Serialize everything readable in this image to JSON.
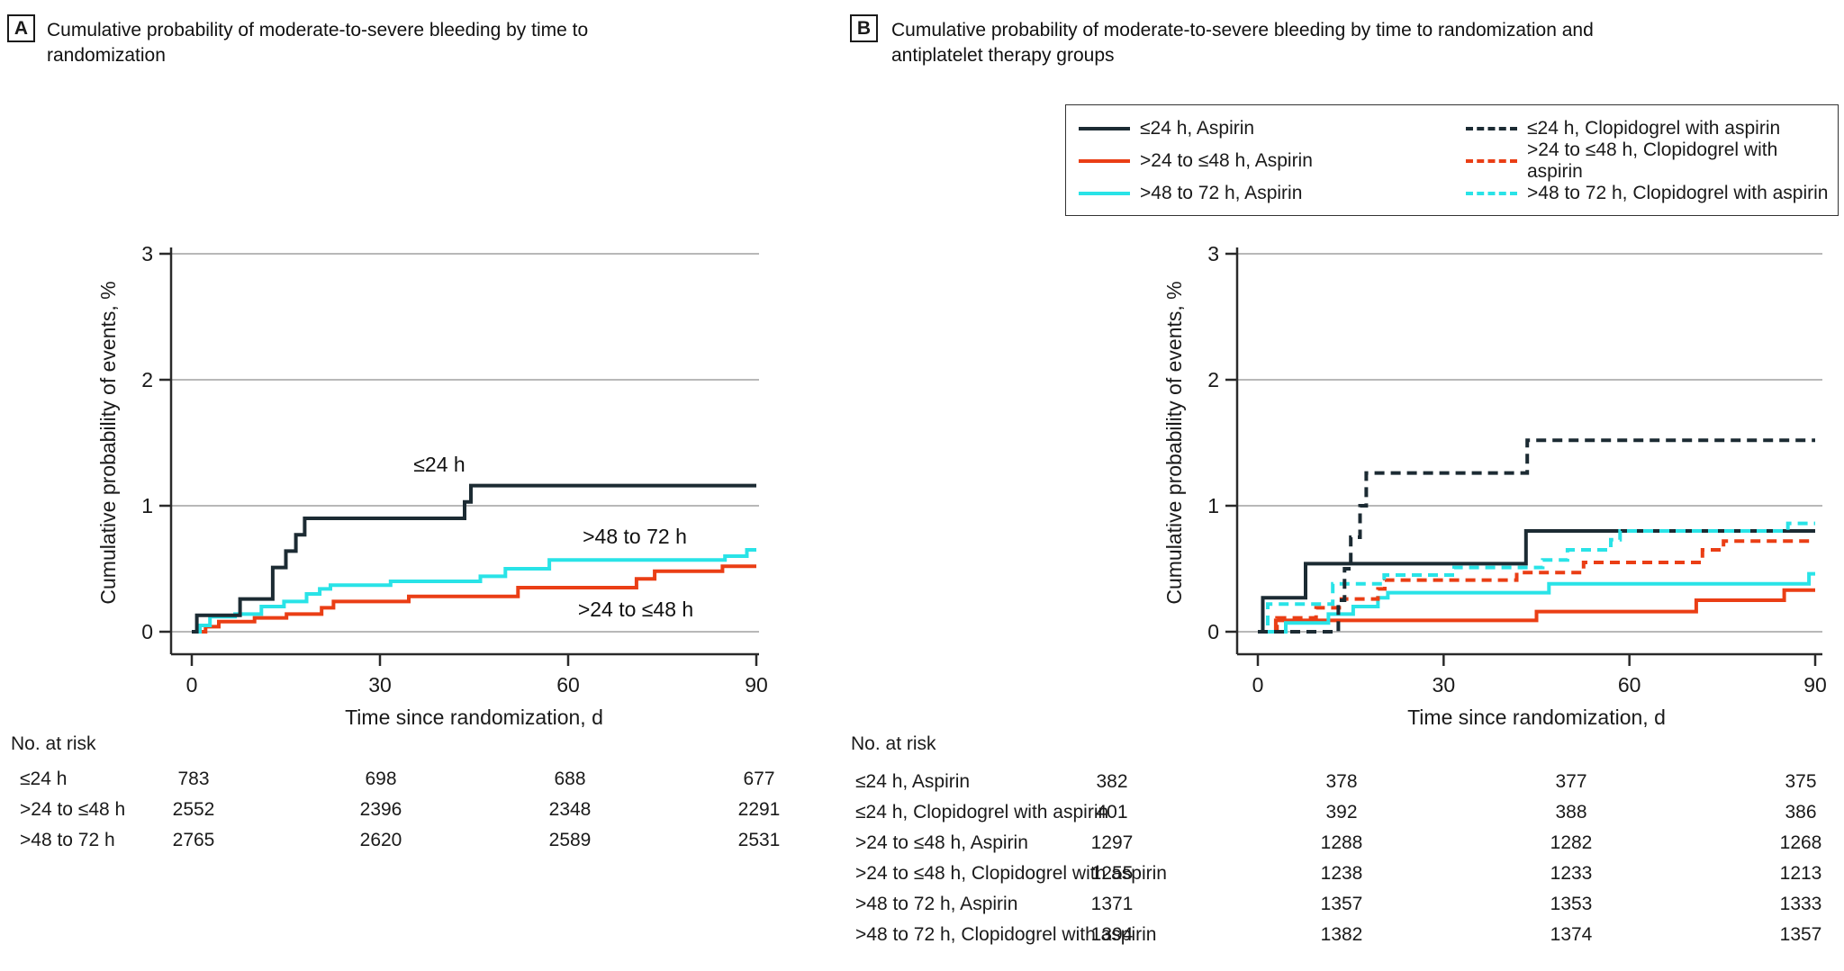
{
  "colors": {
    "black": "#1c2b33",
    "red": "#ea3e15",
    "cyan": "#29e3e7",
    "grid": "#b8b8b8",
    "axis": "#2a2a2a"
  },
  "panel_a": {
    "tag": "A",
    "title": "Cumulative probability of moderate-to-severe bleeding by time to randomization",
    "annotations": [
      {
        "text": "≤24 h"
      },
      {
        "text": ">48 to 72 h"
      },
      {
        "text": ">24 to ≤48 h"
      }
    ],
    "risk_table": {
      "title": "No. at risk",
      "rows": [
        {
          "label": "≤24 h",
          "values": [
            "783",
            "698",
            "688",
            "677"
          ]
        },
        {
          "label": ">24 to ≤48 h",
          "values": [
            "2552",
            "2396",
            "2348",
            "2291"
          ]
        },
        {
          "label": ">48 to 72 h",
          "values": [
            "2765",
            "2620",
            "2589",
            "2531"
          ]
        }
      ]
    }
  },
  "panel_b": {
    "tag": "B",
    "title": "Cumulative probability of moderate-to-severe bleeding by time to randomization and antiplatelet therapy groups",
    "legend": {
      "entries": [
        {
          "label": "≤24 h, Aspirin",
          "color": "black",
          "dash": false
        },
        {
          "label": ">24 to ≤48 h, Aspirin",
          "color": "red",
          "dash": false
        },
        {
          "label": ">48 to 72 h, Aspirin",
          "color": "cyan",
          "dash": false
        },
        {
          "label": "≤24 h, Clopidogrel with aspirin",
          "color": "black",
          "dash": true
        },
        {
          "label": ">24 to ≤48 h, Clopidogrel with aspirin",
          "color": "red",
          "dash": true
        },
        {
          "label": ">48 to 72 h, Clopidogrel with aspirin",
          "color": "cyan",
          "dash": true
        }
      ]
    },
    "risk_table": {
      "title": "No. at risk",
      "rows": [
        {
          "label": "≤24 h, Aspirin",
          "values": [
            "382",
            "378",
            "377",
            "375"
          ]
        },
        {
          "label": "≤24 h, Clopidogrel with aspirin",
          "values": [
            "401",
            "392",
            "388",
            "386"
          ]
        },
        {
          "label": ">24 to ≤48 h, Aspirin",
          "values": [
            "1297",
            "1288",
            "1282",
            "1268"
          ]
        },
        {
          "label": ">24 to ≤48 h, Clopidogrel with aspirin",
          "values": [
            "1255",
            "1238",
            "1233",
            "1213"
          ]
        },
        {
          "label": ">48 to 72 h, Aspirin",
          "values": [
            "1371",
            "1357",
            "1353",
            "1333"
          ]
        },
        {
          "label": ">48 to 72 h, Clopidogrel with aspirin",
          "values": [
            "1394",
            "1382",
            "1374",
            "1357"
          ]
        }
      ]
    }
  },
  "chart_data": [
    {
      "type": "line",
      "panel": "A",
      "title": "Cumulative probability of moderate-to-severe bleeding by time to randomization",
      "xlabel": "Time since randomization, d",
      "ylabel": "Cumulative probability of events, %",
      "xlim": [
        0,
        90
      ],
      "ylim": [
        0,
        3
      ],
      "x_ticks": [
        0,
        30,
        60,
        90
      ],
      "y_ticks": [
        0,
        1,
        2,
        3
      ],
      "grid": "horizontal",
      "legend_position": "none",
      "series": [
        {
          "name": ">24 to ≤48 h",
          "color": "red",
          "dash": false,
          "points": [
            [
              0,
              0
            ],
            [
              2.2,
              0
            ],
            [
              2.2,
              0.04
            ],
            [
              4.3,
              0.04
            ],
            [
              4.3,
              0.08
            ],
            [
              10,
              0.08
            ],
            [
              10,
              0.11
            ],
            [
              15.1,
              0.11
            ],
            [
              15.1,
              0.14
            ],
            [
              20.7,
              0.14
            ],
            [
              20.7,
              0.19
            ],
            [
              22.6,
              0.19
            ],
            [
              22.6,
              0.24
            ],
            [
              34.6,
              0.24
            ],
            [
              34.6,
              0.28
            ],
            [
              52,
              0.28
            ],
            [
              52,
              0.35
            ],
            [
              70.9,
              0.35
            ],
            [
              70.9,
              0.42
            ],
            [
              73.8,
              0.42
            ],
            [
              73.8,
              0.48
            ],
            [
              84.6,
              0.48
            ],
            [
              84.6,
              0.52
            ],
            [
              90,
              0.52
            ]
          ]
        },
        {
          "name": ">48 to 72 h",
          "color": "cyan",
          "dash": false,
          "points": [
            [
              0,
              0
            ],
            [
              1.3,
              0
            ],
            [
              1.3,
              0.05
            ],
            [
              2.9,
              0.05
            ],
            [
              2.9,
              0.12
            ],
            [
              6.9,
              0.12
            ],
            [
              6.9,
              0.14
            ],
            [
              11.1,
              0.14
            ],
            [
              11.1,
              0.2
            ],
            [
              14.7,
              0.2
            ],
            [
              14.7,
              0.24
            ],
            [
              18.3,
              0.24
            ],
            [
              18.3,
              0.3
            ],
            [
              20.4,
              0.3
            ],
            [
              20.4,
              0.34
            ],
            [
              22.1,
              0.34
            ],
            [
              22.1,
              0.37
            ],
            [
              31.7,
              0.37
            ],
            [
              31.7,
              0.4
            ],
            [
              46,
              0.4
            ],
            [
              46,
              0.44
            ],
            [
              50,
              0.44
            ],
            [
              50,
              0.5
            ],
            [
              57,
              0.5
            ],
            [
              57,
              0.57
            ],
            [
              85,
              0.57
            ],
            [
              85,
              0.6
            ],
            [
              88.5,
              0.6
            ],
            [
              88.5,
              0.65
            ],
            [
              90,
              0.65
            ]
          ]
        },
        {
          "name": "≤24 h",
          "color": "black",
          "dash": false,
          "points": [
            [
              0,
              0
            ],
            [
              0.8,
              0
            ],
            [
              0.8,
              0.13
            ],
            [
              7.7,
              0.13
            ],
            [
              7.7,
              0.26
            ],
            [
              12.9,
              0.26
            ],
            [
              12.9,
              0.51
            ],
            [
              15,
              0.51
            ],
            [
              15,
              0.64
            ],
            [
              16.6,
              0.64
            ],
            [
              16.6,
              0.77
            ],
            [
              18,
              0.77
            ],
            [
              18,
              0.9
            ],
            [
              43.5,
              0.9
            ],
            [
              43.5,
              1.03
            ],
            [
              44.5,
              1.03
            ],
            [
              44.5,
              1.16
            ],
            [
              90,
              1.16
            ]
          ]
        }
      ]
    },
    {
      "type": "line",
      "panel": "B",
      "title": "Cumulative probability of moderate-to-severe bleeding by time to randomization and antiplatelet therapy groups",
      "xlabel": "Time since randomization, d",
      "ylabel": "Cumulative probability of events, %",
      "xlim": [
        0,
        90
      ],
      "ylim": [
        0,
        3
      ],
      "x_ticks": [
        0,
        30,
        60,
        90
      ],
      "y_ticks": [
        0,
        1,
        2,
        3
      ],
      "grid": "horizontal",
      "legend_position": "top-right box",
      "series": [
        {
          "name": ">24 to ≤48 h, Aspirin",
          "color": "red",
          "dash": false,
          "points": [
            [
              0,
              0
            ],
            [
              2.9,
              0
            ],
            [
              2.9,
              0.09
            ],
            [
              45,
              0.09
            ],
            [
              45,
              0.16
            ],
            [
              70.8,
              0.16
            ],
            [
              70.8,
              0.25
            ],
            [
              85,
              0.25
            ],
            [
              85,
              0.33
            ],
            [
              90,
              0.33
            ]
          ]
        },
        {
          "name": ">48 to 72 h, Aspirin",
          "color": "cyan",
          "dash": false,
          "points": [
            [
              0,
              0
            ],
            [
              4.5,
              0
            ],
            [
              4.5,
              0.07
            ],
            [
              11.4,
              0.07
            ],
            [
              11.4,
              0.14
            ],
            [
              15.4,
              0.14
            ],
            [
              15.4,
              0.2
            ],
            [
              19.4,
              0.2
            ],
            [
              19.4,
              0.27
            ],
            [
              21,
              0.27
            ],
            [
              21,
              0.31
            ],
            [
              47,
              0.31
            ],
            [
              47,
              0.38
            ],
            [
              89,
              0.38
            ],
            [
              89,
              0.46
            ],
            [
              90,
              0.46
            ]
          ]
        },
        {
          "name": "≤24 h, Aspirin",
          "color": "black",
          "dash": false,
          "points": [
            [
              0,
              0
            ],
            [
              0.8,
              0
            ],
            [
              0.8,
              0.27
            ],
            [
              7.7,
              0.27
            ],
            [
              7.7,
              0.54
            ],
            [
              43.3,
              0.54
            ],
            [
              43.3,
              0.8
            ],
            [
              90,
              0.8
            ]
          ]
        },
        {
          "name": ">24 to ≤48 h, Clopidogrel with aspirin",
          "color": "red",
          "dash": true,
          "points": [
            [
              0,
              0
            ],
            [
              3.1,
              0
            ],
            [
              3.1,
              0.11
            ],
            [
              9.4,
              0.11
            ],
            [
              9.4,
              0.19
            ],
            [
              13.5,
              0.19
            ],
            [
              13.5,
              0.26
            ],
            [
              19.4,
              0.26
            ],
            [
              19.4,
              0.34
            ],
            [
              20.5,
              0.34
            ],
            [
              20.5,
              0.41
            ],
            [
              41.8,
              0.41
            ],
            [
              41.8,
              0.47
            ],
            [
              52.6,
              0.47
            ],
            [
              52.6,
              0.55
            ],
            [
              71.8,
              0.55
            ],
            [
              71.8,
              0.65
            ],
            [
              75.2,
              0.65
            ],
            [
              75.2,
              0.72
            ],
            [
              90,
              0.72
            ]
          ]
        },
        {
          "name": ">48 to 72 h, Clopidogrel with aspirin",
          "color": "cyan",
          "dash": true,
          "points": [
            [
              0,
              0
            ],
            [
              1.6,
              0
            ],
            [
              1.6,
              0.22
            ],
            [
              12.1,
              0.22
            ],
            [
              12.1,
              0.38
            ],
            [
              20.4,
              0.38
            ],
            [
              20.4,
              0.45
            ],
            [
              31.7,
              0.45
            ],
            [
              31.7,
              0.51
            ],
            [
              46,
              0.51
            ],
            [
              46,
              0.57
            ],
            [
              50,
              0.57
            ],
            [
              50,
              0.65
            ],
            [
              57,
              0.65
            ],
            [
              57,
              0.73
            ],
            [
              58.5,
              0.73
            ],
            [
              58.5,
              0.8
            ],
            [
              85.6,
              0.8
            ],
            [
              85.6,
              0.86
            ],
            [
              90,
              0.86
            ]
          ]
        },
        {
          "name": "≤24 h, Clopidogrel with aspirin",
          "color": "black",
          "dash": true,
          "points": [
            [
              0,
              0
            ],
            [
              13,
              0
            ],
            [
              13,
              0.25
            ],
            [
              14,
              0.25
            ],
            [
              14,
              0.5
            ],
            [
              15,
              0.5
            ],
            [
              15,
              0.75
            ],
            [
              16.5,
              0.75
            ],
            [
              16.5,
              1.0
            ],
            [
              17.5,
              1.0
            ],
            [
              17.5,
              1.26
            ],
            [
              43.5,
              1.26
            ],
            [
              43.5,
              1.52
            ],
            [
              90,
              1.52
            ]
          ]
        }
      ]
    }
  ]
}
